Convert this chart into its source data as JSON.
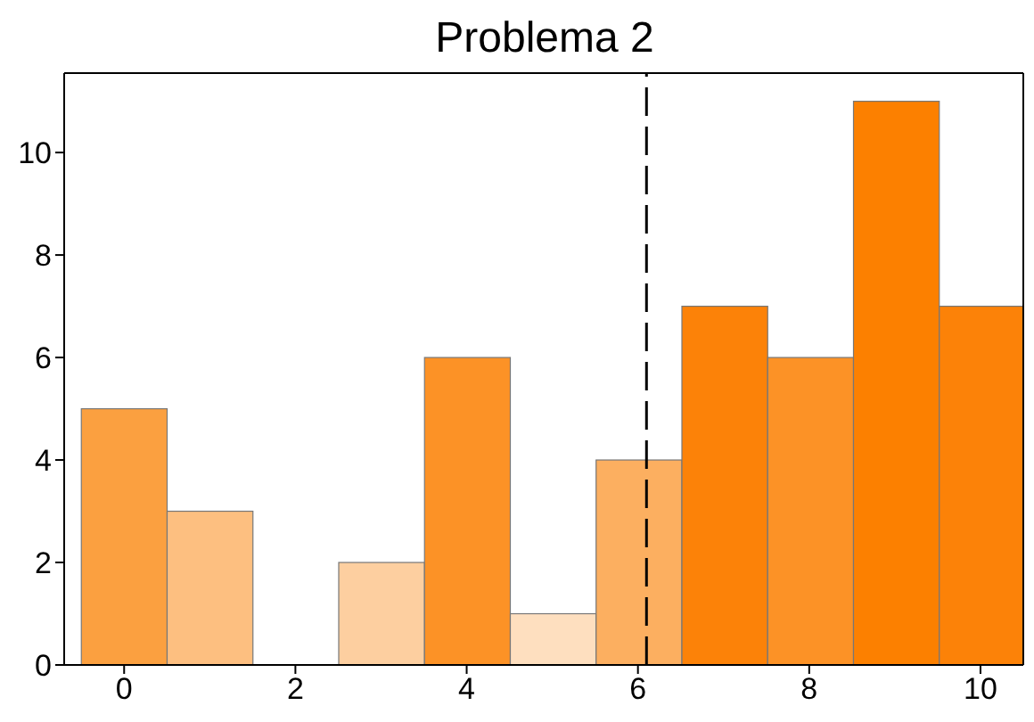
{
  "chart_data": {
    "type": "histogram",
    "title": "Problema 2",
    "bins": [
      -0.5,
      0.5,
      1.5,
      2.5,
      3.5,
      4.5,
      5.5,
      6.5,
      7.5,
      8.5,
      9.5,
      10.5
    ],
    "values": [
      5,
      3,
      0,
      2,
      6,
      1,
      4,
      7,
      6,
      11,
      7
    ],
    "colors": [
      "#fba040",
      "#fdbf80",
      "#fdbf80",
      "#fdcfa0",
      "#fc9226",
      "#fedfbf",
      "#fcaf60",
      "#fc8208",
      "#fc9226",
      "#fc8000",
      "#fc8208"
    ],
    "xlim": [
      -0.7,
      10.5
    ],
    "xticks": [
      0,
      2,
      4,
      6,
      8,
      10
    ],
    "ylim": [
      0,
      11.55
    ],
    "yticks": [
      0,
      2,
      4,
      6,
      8,
      10
    ],
    "ref_lines": [
      {
        "axis": "x",
        "value": 6.1,
        "color": "#000000",
        "line_style": "dashed"
      }
    ]
  }
}
